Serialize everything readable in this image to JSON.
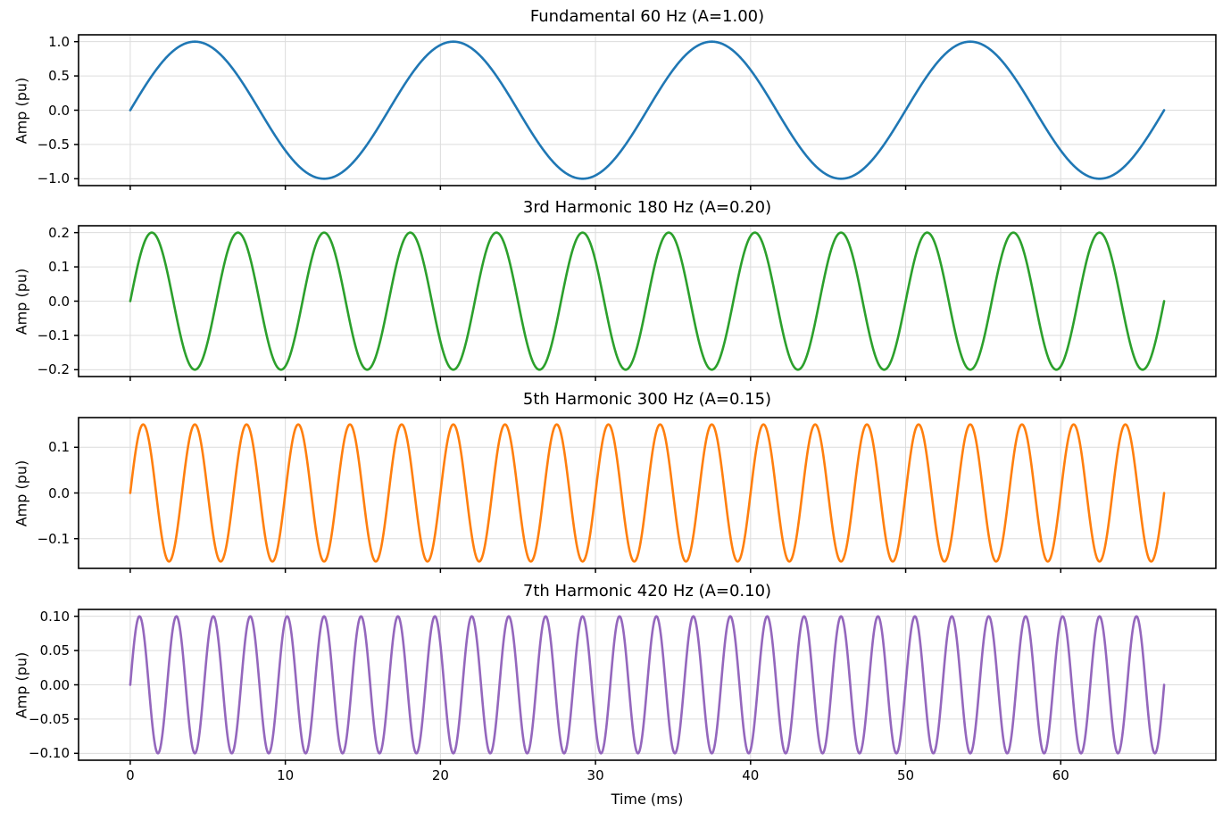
{
  "figure": {
    "background": "#ffffff",
    "text_color": "#000000",
    "grid_color": "#dcdcdc",
    "spine_color": "#000000"
  },
  "x_axis": {
    "label": "Time (ms)",
    "ticks": [
      0,
      10,
      20,
      30,
      40,
      50,
      60
    ],
    "tick_labels": [
      "0",
      "10",
      "20",
      "30",
      "40",
      "50",
      "60"
    ],
    "xlim": [
      -3.3333,
      70.0
    ],
    "data_range_ms": [
      0,
      66.6667
    ]
  },
  "chart_data": [
    {
      "type": "line",
      "title": "Fundamental 60 Hz (A=1.00)",
      "ylabel": "Amp (pu)",
      "waveform": "sine",
      "frequency_hz": 60,
      "amplitude_pu": 1.0,
      "phase_deg": 0,
      "color": "#1f77b4",
      "ylim": [
        -1.1,
        1.1
      ],
      "yticks": [
        1.0,
        0.5,
        0.0,
        -0.5,
        -1.0
      ],
      "ytick_labels": [
        "1.0",
        "0.5",
        "0.0",
        "−0.5",
        "−1.0"
      ],
      "grid": true
    },
    {
      "type": "line",
      "title": "3rd Harmonic 180 Hz (A=0.20)",
      "ylabel": "Amp (pu)",
      "waveform": "sine",
      "frequency_hz": 180,
      "amplitude_pu": 0.2,
      "phase_deg": 0,
      "color": "#2ca02c",
      "ylim": [
        -0.22,
        0.22
      ],
      "yticks": [
        0.2,
        0.1,
        0.0,
        -0.1,
        -0.2
      ],
      "ytick_labels": [
        "0.2",
        "0.1",
        "0.0",
        "−0.1",
        "−0.2"
      ],
      "grid": true
    },
    {
      "type": "line",
      "title": "5th Harmonic 300 Hz (A=0.15)",
      "ylabel": "Amp (pu)",
      "waveform": "sine",
      "frequency_hz": 300,
      "amplitude_pu": 0.15,
      "phase_deg": 0,
      "color": "#ff7f0e",
      "ylim": [
        -0.165,
        0.165
      ],
      "yticks": [
        0.1,
        0.0,
        -0.1
      ],
      "ytick_labels": [
        "0.1",
        "0.0",
        "−0.1"
      ],
      "grid": true
    },
    {
      "type": "line",
      "title": "7th Harmonic 420 Hz (A=0.10)",
      "ylabel": "Amp (pu)",
      "waveform": "sine",
      "frequency_hz": 420,
      "amplitude_pu": 0.1,
      "phase_deg": 0,
      "color": "#9467bd",
      "ylim": [
        -0.11,
        0.11
      ],
      "yticks": [
        0.1,
        0.05,
        0.0,
        -0.05,
        -0.1
      ],
      "ytick_labels": [
        "0.10",
        "0.05",
        "0.00",
        "−0.05",
        "−0.10"
      ],
      "grid": true
    }
  ]
}
